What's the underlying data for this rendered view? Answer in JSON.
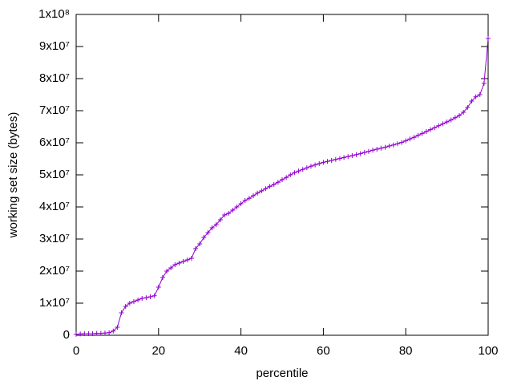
{
  "chart_data": {
    "type": "line",
    "xlabel": "percentile",
    "ylabel": "working set size (bytes)",
    "x": [
      0,
      1,
      2,
      3,
      4,
      5,
      6,
      7,
      8,
      9,
      10,
      11,
      12,
      13,
      14,
      15,
      16,
      17,
      18,
      19,
      20,
      21,
      22,
      23,
      24,
      25,
      26,
      27,
      28,
      29,
      30,
      31,
      32,
      33,
      34,
      35,
      36,
      37,
      38,
      39,
      40,
      41,
      42,
      43,
      44,
      45,
      46,
      47,
      48,
      49,
      50,
      51,
      52,
      53,
      54,
      55,
      56,
      57,
      58,
      59,
      60,
      61,
      62,
      63,
      64,
      65,
      66,
      67,
      68,
      69,
      70,
      71,
      72,
      73,
      74,
      75,
      76,
      77,
      78,
      79,
      80,
      81,
      82,
      83,
      84,
      85,
      86,
      87,
      88,
      89,
      90,
      91,
      92,
      93,
      94,
      95,
      96,
      97,
      98,
      99,
      100
    ],
    "series": [
      {
        "color": "#9400d3",
        "marker": "+",
        "values": [
          300000,
          400000,
          500000,
          500000,
          500000,
          600000,
          600000,
          700000,
          800000,
          1300000,
          2500000,
          7000000,
          9000000,
          10000000,
          10500000,
          11000000,
          11500000,
          11700000,
          12000000,
          12300000,
          15000000,
          18000000,
          20000000,
          21000000,
          22000000,
          22500000,
          23000000,
          23500000,
          24000000,
          27000000,
          28500000,
          30500000,
          32000000,
          33500000,
          34500000,
          36000000,
          37500000,
          38000000,
          39000000,
          40000000,
          41000000,
          42000000,
          42700000,
          43500000,
          44300000,
          45000000,
          45700000,
          46400000,
          47000000,
          47700000,
          48500000,
          49200000,
          50000000,
          50700000,
          51200000,
          51700000,
          52200000,
          52700000,
          53100000,
          53500000,
          53900000,
          54200000,
          54500000,
          54800000,
          55100000,
          55400000,
          55700000,
          56000000,
          56300000,
          56600000,
          57000000,
          57300000,
          57700000,
          58000000,
          58300000,
          58600000,
          59000000,
          59300000,
          59700000,
          60100000,
          60600000,
          61200000,
          61700000,
          62300000,
          62900000,
          63500000,
          64100000,
          64700000,
          65300000,
          65900000,
          66500000,
          67100000,
          67800000,
          68500000,
          69500000,
          71000000,
          73000000,
          74300000,
          75000000,
          78500000,
          92500000
        ]
      }
    ],
    "xlim": [
      0,
      100
    ],
    "xticks": [
      0,
      20,
      40,
      60,
      80,
      100
    ],
    "ylim": [
      0,
      100000000
    ],
    "yticks": [
      0,
      {
        "value": 10000000,
        "label": "1x10⁷"
      },
      {
        "value": 20000000,
        "label": "2x10⁷"
      },
      {
        "value": 30000000,
        "label": "3x10⁷"
      },
      {
        "value": 40000000,
        "label": "4x10⁷"
      },
      {
        "value": 50000000,
        "label": "5x10⁷"
      },
      {
        "value": 60000000,
        "label": "6x10⁷"
      },
      {
        "value": 70000000,
        "label": "7x10⁷"
      },
      {
        "value": 80000000,
        "label": "8x10⁷"
      },
      {
        "value": 90000000,
        "label": "9x10⁷"
      },
      {
        "value": 100000000,
        "label": "1x10⁸"
      }
    ],
    "grid": false
  }
}
